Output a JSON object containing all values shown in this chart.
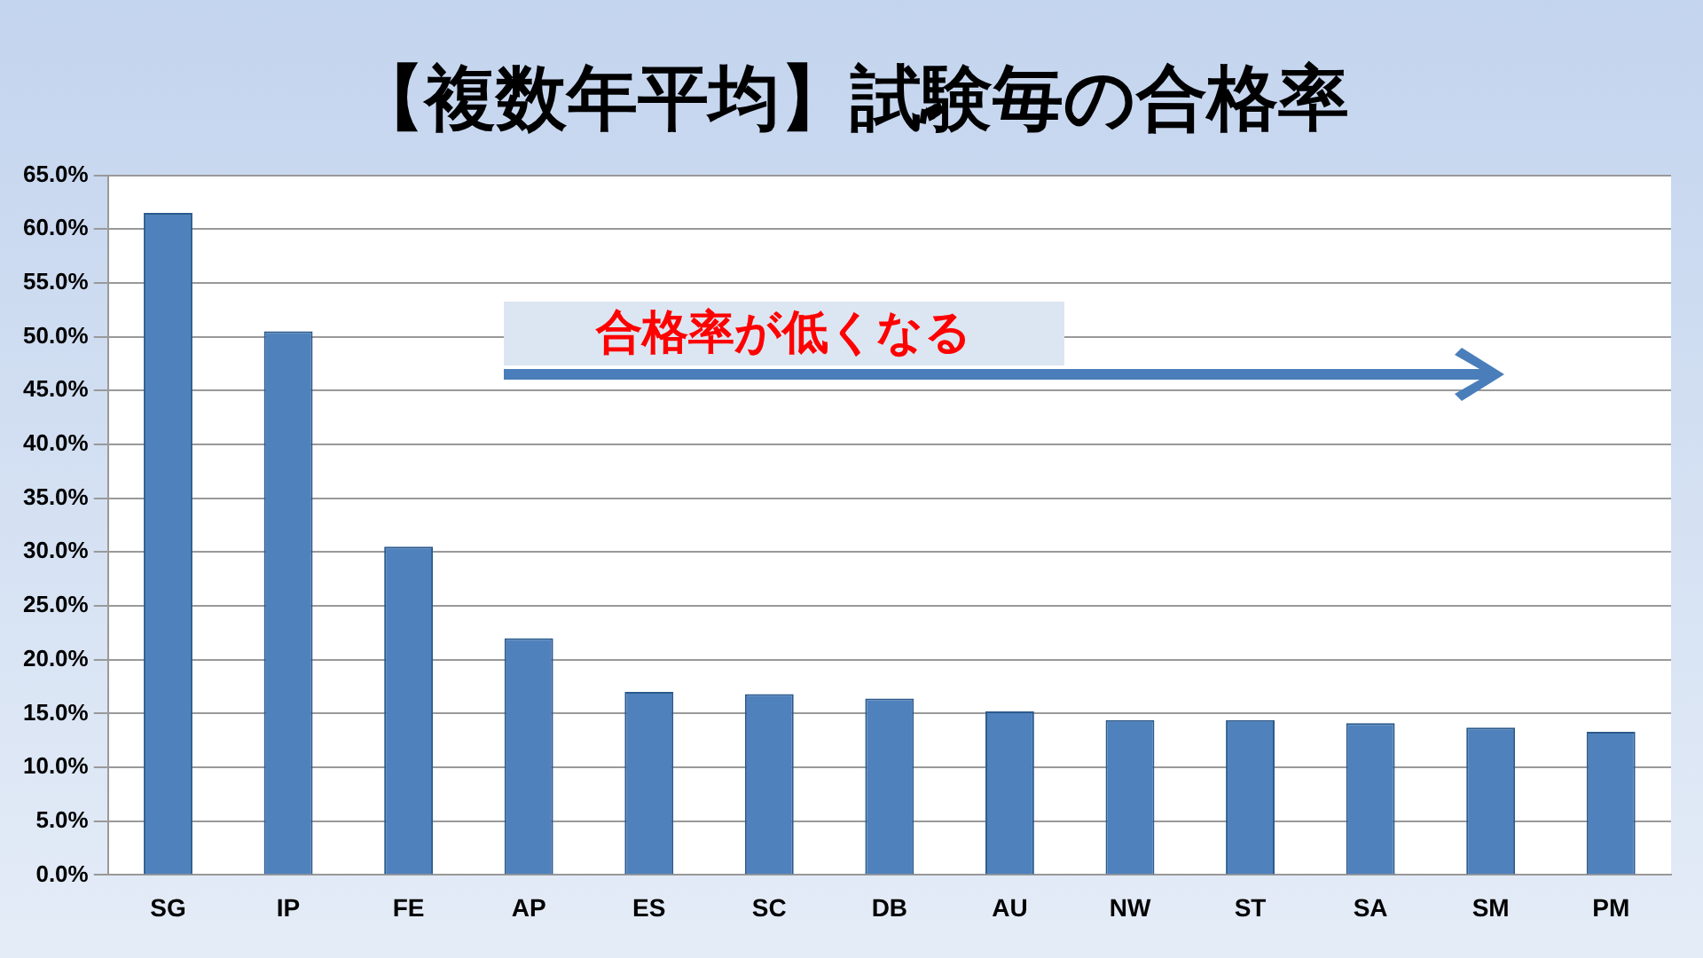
{
  "chart_data": {
    "type": "bar",
    "title": "【複数年平均】試験毎の合格率",
    "categories": [
      "SG",
      "IP",
      "FE",
      "AP",
      "ES",
      "SC",
      "DB",
      "AU",
      "NW",
      "ST",
      "SA",
      "SM",
      "PM"
    ],
    "series": [
      {
        "color": "#4f81bd",
        "values": [
          61.5,
          50.5,
          30.5,
          22,
          17,
          16.8,
          16.4,
          15.2,
          14.4,
          14.4,
          14.1,
          13.7,
          13.3
        ]
      }
    ],
    "ylim": [
      0,
      65
    ],
    "yticks": [
      {
        "value": 0,
        "label": "0.0%"
      },
      {
        "value": 5,
        "label": "5.0%"
      },
      {
        "value": 10,
        "label": "10.0%"
      },
      {
        "value": 15,
        "label": "15.0%"
      },
      {
        "value": 20,
        "label": "20.0%"
      },
      {
        "value": 25,
        "label": "25.0%"
      },
      {
        "value": 30,
        "label": "30.0%"
      },
      {
        "value": 35,
        "label": "35.0%"
      },
      {
        "value": 40,
        "label": "40.0%"
      },
      {
        "value": 45,
        "label": "45.0%"
      },
      {
        "value": 50,
        "label": "50.0%"
      },
      {
        "value": 55,
        "label": "55.0%"
      },
      {
        "value": 60,
        "label": "60.0%"
      },
      {
        "value": 65,
        "label": "65.0%"
      }
    ],
    "grid": "y",
    "annotations": [
      "合格率が低くなる"
    ]
  }
}
